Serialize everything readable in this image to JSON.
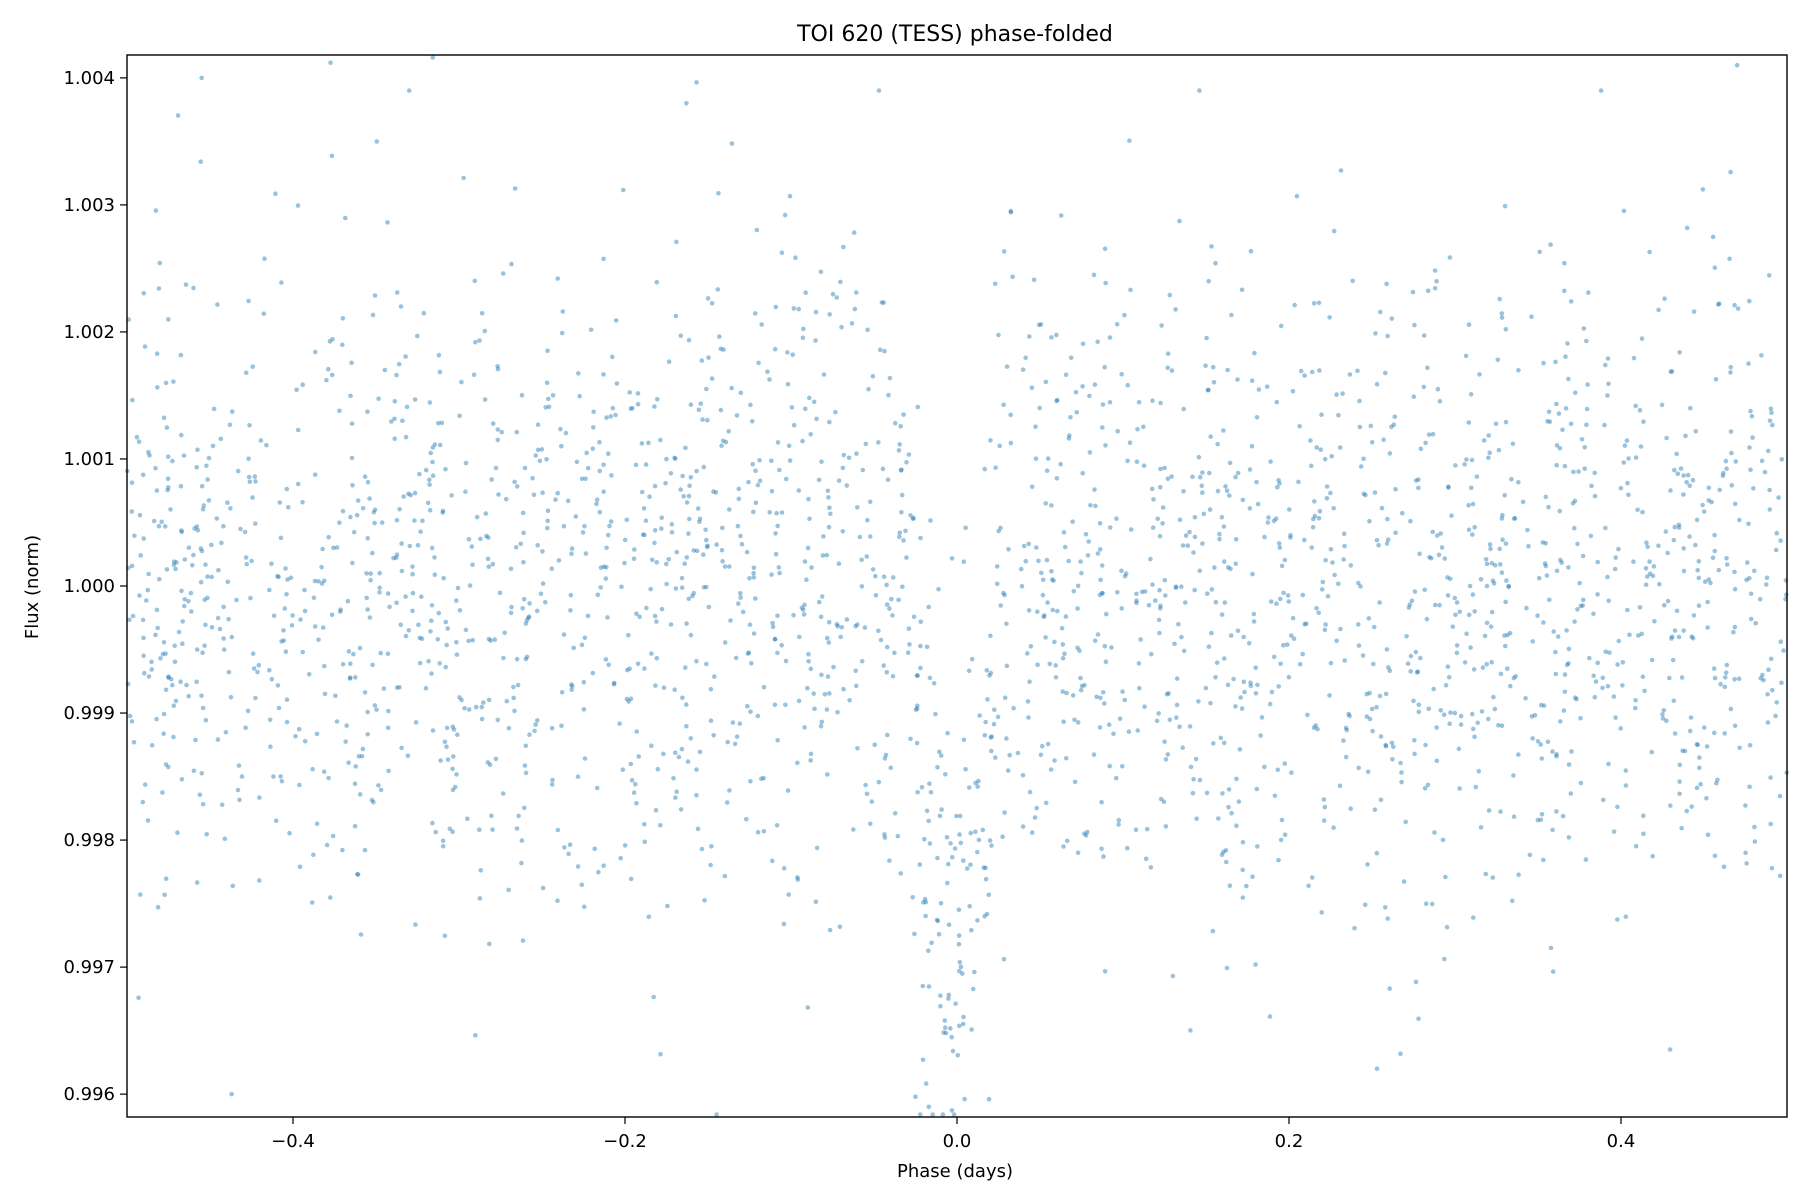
{
  "chart_data": {
    "type": "scatter",
    "title": "TOI 620 (TESS) phase-folded",
    "xlabel": "Phase (days)",
    "ylabel": "Flux (norm)",
    "xlim": [
      -0.5,
      0.5
    ],
    "ylim": [
      0.99582,
      1.00418
    ],
    "x_ticks": [
      -0.4,
      -0.2,
      0.0,
      0.2,
      0.4
    ],
    "x_tick_labels": [
      "−0.4",
      "−0.2",
      "0.0",
      "0.2",
      "0.4"
    ],
    "y_ticks": [
      0.996,
      0.997,
      0.998,
      0.999,
      1.0,
      1.001,
      1.002,
      1.003,
      1.004
    ],
    "y_tick_labels": [
      "0.996",
      "0.997",
      "0.998",
      "0.999",
      "1.000",
      "1.001",
      "1.002",
      "1.003",
      "1.004"
    ],
    "grid": false,
    "legend": false,
    "marker_color": "#1f77b4",
    "marker_alpha": 0.45,
    "series": [
      {
        "baseline_flux": 0.99999,
        "scatter_sigma": 0.00125,
        "transit_center": -0.003,
        "transit_depth": 0.00285,
        "transit_half_width": 0.028,
        "n_points_approx": 2600,
        "sample_points": [
          {
            "x": -0.455,
            "y": 1.004
          },
          {
            "x": -0.437,
            "y": 0.996
          },
          {
            "x": -0.33,
            "y": 1.0039
          },
          {
            "x": -0.163,
            "y": 1.0038
          },
          {
            "x": -0.047,
            "y": 1.0039
          },
          {
            "x": -0.017,
            "y": 0.9959
          },
          {
            "x": 0.146,
            "y": 1.0039
          },
          {
            "x": 0.253,
            "y": 0.9962
          },
          {
            "x": 0.388,
            "y": 1.0039
          },
          {
            "x": 0.47,
            "y": 1.0041
          }
        ]
      }
    ]
  }
}
